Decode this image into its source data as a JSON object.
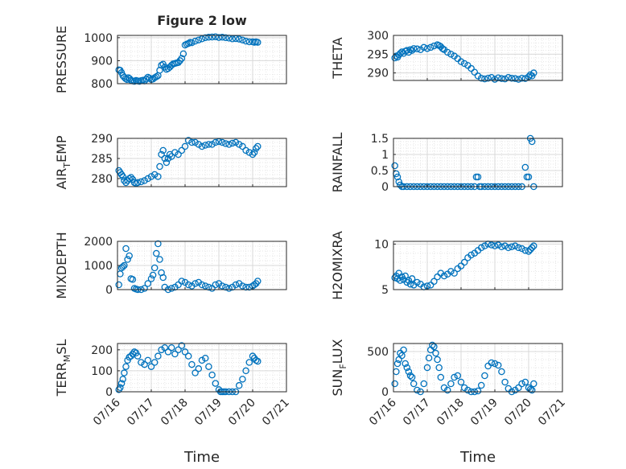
{
  "figure_title": "Figure 2 low",
  "colors": {
    "marker": "#0072BD",
    "grid": "#d9d9d9",
    "axis": "#262626",
    "background": "#ffffff"
  },
  "x_axis": {
    "label": "Time",
    "ticks": [
      "07/16",
      "07/17",
      "07/18",
      "07/19",
      "07/20",
      "07/21"
    ]
  },
  "chart_data": [
    {
      "type": "scatter",
      "id": "pressure",
      "ylabel": "PRESSURE",
      "ylim": [
        800,
        1010
      ],
      "yticks": [
        800,
        900,
        1000
      ],
      "ytick_labels": [
        "800",
        "900",
        "1000"
      ],
      "grid": "on",
      "x": [
        0.04,
        0.08,
        0.12,
        0.16,
        0.2,
        0.24,
        0.28,
        0.32,
        0.36,
        0.4,
        0.45,
        0.5,
        0.55,
        0.6,
        0.65,
        0.7,
        0.75,
        0.8,
        0.85,
        0.9,
        0.95,
        1.0,
        1.05,
        1.1,
        1.15,
        1.2,
        1.25,
        1.3,
        1.35,
        1.4,
        1.45,
        1.5,
        1.55,
        1.6,
        1.65,
        1.7,
        1.75,
        1.8,
        1.85,
        1.9,
        1.95,
        2.0,
        2.05,
        2.1,
        2.15,
        2.2,
        2.3,
        2.4,
        2.5,
        2.6,
        2.7,
        2.8,
        2.9,
        3.0,
        3.1,
        3.2,
        3.3,
        3.4,
        3.5,
        3.6,
        3.7,
        3.8,
        3.9,
        4.0,
        4.05,
        4.1,
        4.15
      ],
      "y": [
        860,
        858,
        848,
        835,
        828,
        822,
        818,
        826,
        822,
        815,
        812,
        810,
        814,
        812,
        810,
        813,
        815,
        812,
        820,
        828,
        824,
        818,
        820,
        826,
        830,
        835,
        858,
        880,
        885,
        872,
        862,
        866,
        872,
        880,
        886,
        888,
        890,
        892,
        900,
        910,
        930,
        968,
        972,
        975,
        980,
        978,
        985,
        990,
        995,
        1000,
        1002,
        1003,
        1004,
        1001,
        1002,
        1000,
        998,
        995,
        996,
        994,
        990,
        985,
        982,
        982,
        980,
        982,
        980
      ]
    },
    {
      "type": "scatter",
      "id": "theta",
      "ylabel": "THETA",
      "ylim": [
        288,
        300
      ],
      "yticks": [
        290,
        295,
        300
      ],
      "ytick_labels": [
        "290",
        "295",
        "300"
      ],
      "grid": "on",
      "x": [
        0.04,
        0.08,
        0.12,
        0.16,
        0.2,
        0.25,
        0.3,
        0.35,
        0.4,
        0.45,
        0.5,
        0.55,
        0.6,
        0.7,
        0.8,
        0.9,
        1.0,
        1.1,
        1.2,
        1.3,
        1.35,
        1.4,
        1.45,
        1.5,
        1.6,
        1.7,
        1.8,
        1.9,
        2.0,
        2.1,
        2.2,
        2.3,
        2.4,
        2.5,
        2.6,
        2.7,
        2.8,
        2.9,
        3.0,
        3.1,
        3.2,
        3.3,
        3.4,
        3.5,
        3.6,
        3.7,
        3.8,
        3.9,
        4.0,
        4.05,
        4.1,
        4.15
      ],
      "y": [
        294,
        294.5,
        294.2,
        294.8,
        295.2,
        295.6,
        295.2,
        295.8,
        296,
        295.5,
        296.2,
        296,
        296.5,
        296.4,
        296.2,
        296.8,
        296.5,
        296.8,
        297.2,
        297.5,
        297.3,
        297,
        296.5,
        296.2,
        295.5,
        295,
        294.5,
        293.8,
        293,
        292.5,
        292,
        291.2,
        290.2,
        289.2,
        288.6,
        288.4,
        288.6,
        288.8,
        288.3,
        288.7,
        288.5,
        288.4,
        288.8,
        288.6,
        288.5,
        288.3,
        288.6,
        288.5,
        289,
        289.5,
        289.2,
        290
      ]
    },
    {
      "type": "scatter",
      "id": "air_temp",
      "ylabel": "AIR_TEMP",
      "ylim": [
        278,
        290
      ],
      "yticks": [
        280,
        285,
        290
      ],
      "ytick_labels": [
        "280",
        "285",
        "290"
      ],
      "grid": "on",
      "x": [
        0.04,
        0.08,
        0.12,
        0.16,
        0.2,
        0.25,
        0.3,
        0.35,
        0.4,
        0.45,
        0.5,
        0.55,
        0.6,
        0.7,
        0.8,
        0.9,
        1.0,
        1.1,
        1.2,
        1.25,
        1.3,
        1.35,
        1.4,
        1.45,
        1.5,
        1.55,
        1.6,
        1.7,
        1.8,
        1.9,
        2.0,
        2.1,
        2.2,
        2.3,
        2.4,
        2.5,
        2.6,
        2.7,
        2.8,
        2.9,
        3.0,
        3.1,
        3.2,
        3.3,
        3.4,
        3.5,
        3.6,
        3.7,
        3.8,
        3.9,
        4.0,
        4.05,
        4.1,
        4.15
      ],
      "y": [
        282,
        281.5,
        281,
        280.5,
        279.5,
        279,
        279.5,
        280,
        280.3,
        279.8,
        279,
        278.8,
        279,
        279.2,
        279.5,
        280,
        280.5,
        281,
        280.5,
        283,
        286,
        287,
        285,
        284,
        285,
        286,
        285.5,
        286.5,
        286,
        287,
        288,
        289.5,
        289,
        289,
        288.5,
        288,
        288.3,
        288.5,
        288.5,
        289,
        289.2,
        289,
        288.7,
        288.5,
        288.8,
        289,
        288.5,
        288,
        287,
        286.5,
        286,
        286.5,
        287.5,
        288
      ]
    },
    {
      "type": "scatter",
      "id": "rainfall",
      "ylabel": "RAINFALL",
      "ylim": [
        0,
        1.5
      ],
      "yticks": [
        0,
        0.5,
        1,
        1.5
      ],
      "ytick_labels": [
        "0",
        "0.5",
        "1",
        "1.5"
      ],
      "grid": "on",
      "x": [
        0.04,
        0.08,
        0.12,
        0.16,
        0.2,
        0.25,
        0.3,
        0.4,
        0.5,
        0.6,
        0.7,
        0.8,
        0.9,
        1.0,
        1.1,
        1.2,
        1.3,
        1.4,
        1.5,
        1.6,
        1.7,
        1.8,
        1.9,
        2.0,
        2.1,
        2.2,
        2.3,
        2.4,
        2.45,
        2.5,
        2.55,
        2.6,
        2.7,
        2.8,
        2.9,
        3.0,
        3.1,
        3.2,
        3.3,
        3.4,
        3.5,
        3.6,
        3.7,
        3.8,
        3.9,
        3.95,
        4.0,
        4.05,
        4.1,
        4.15
      ],
      "y": [
        0.65,
        0.4,
        0.3,
        0.15,
        0.05,
        0,
        0,
        0,
        0,
        0,
        0,
        0,
        0,
        0,
        0,
        0,
        0,
        0,
        0,
        0,
        0,
        0,
        0,
        0,
        0,
        0,
        0,
        0,
        0.3,
        0.3,
        0,
        0,
        0,
        0,
        0,
        0,
        0,
        0,
        0,
        0,
        0,
        0,
        0,
        0,
        0.6,
        0.3,
        0.3,
        1.5,
        1.4,
        0
      ]
    },
    {
      "type": "scatter",
      "id": "mixdepth",
      "ylabel": "MIXDEPTH",
      "ylim": [
        0,
        2000
      ],
      "yticks": [
        0,
        1000,
        2000
      ],
      "ytick_labels": [
        "0",
        "1000",
        "2000"
      ],
      "grid": "on",
      "x": [
        0.04,
        0.08,
        0.12,
        0.16,
        0.2,
        0.25,
        0.3,
        0.35,
        0.4,
        0.45,
        0.5,
        0.55,
        0.6,
        0.7,
        0.8,
        0.9,
        1.0,
        1.05,
        1.1,
        1.15,
        1.2,
        1.25,
        1.3,
        1.35,
        1.4,
        1.5,
        1.6,
        1.7,
        1.8,
        1.9,
        2.0,
        2.1,
        2.2,
        2.3,
        2.4,
        2.5,
        2.6,
        2.7,
        2.8,
        2.9,
        3.0,
        3.1,
        3.2,
        3.3,
        3.4,
        3.5,
        3.6,
        3.7,
        3.8,
        3.9,
        4.0,
        4.05,
        4.1,
        4.15
      ],
      "y": [
        200,
        650,
        900,
        950,
        1000,
        1700,
        1250,
        1400,
        450,
        420,
        50,
        20,
        0,
        0,
        50,
        250,
        450,
        600,
        900,
        1500,
        1900,
        1250,
        700,
        500,
        100,
        0,
        50,
        100,
        200,
        350,
        300,
        200,
        150,
        250,
        300,
        200,
        150,
        100,
        50,
        200,
        250,
        150,
        100,
        50,
        100,
        200,
        250,
        150,
        100,
        100,
        150,
        200,
        250,
        350
      ]
    },
    {
      "type": "scatter",
      "id": "h2omixra",
      "ylabel": "H2OMIXRA",
      "ylim": [
        5,
        10.3
      ],
      "yticks": [
        5,
        10
      ],
      "ytick_labels": [
        "5",
        "10"
      ],
      "grid": "on",
      "x": [
        0.04,
        0.08,
        0.12,
        0.16,
        0.2,
        0.25,
        0.3,
        0.35,
        0.4,
        0.45,
        0.5,
        0.55,
        0.6,
        0.7,
        0.8,
        0.9,
        1.0,
        1.1,
        1.2,
        1.3,
        1.4,
        1.5,
        1.6,
        1.7,
        1.8,
        1.9,
        2.0,
        2.1,
        2.2,
        2.3,
        2.4,
        2.5,
        2.6,
        2.7,
        2.8,
        2.9,
        3.0,
        3.1,
        3.2,
        3.3,
        3.4,
        3.5,
        3.6,
        3.7,
        3.8,
        3.9,
        4.0,
        4.05,
        4.1,
        4.15
      ],
      "y": [
        6.3,
        6.5,
        6.2,
        6.8,
        6,
        6.4,
        6.1,
        6.5,
        5.8,
        6,
        5.6,
        6.2,
        5.5,
        5.8,
        5.6,
        5.3,
        5.4,
        5.5,
        5.9,
        6.4,
        6.8,
        6.5,
        6.7,
        7,
        6.8,
        7.3,
        7.6,
        8,
        8.5,
        8.8,
        9,
        9.3,
        9.6,
        9.8,
        10,
        9.9,
        9.8,
        9.9,
        9.7,
        9.8,
        9.6,
        9.7,
        9.8,
        9.6,
        9.5,
        9.3,
        9.2,
        9.4,
        9.6,
        9.8
      ]
    },
    {
      "type": "scatter",
      "id": "terr_msl",
      "ylabel": "TERR_MSL",
      "ylim": [
        0,
        230
      ],
      "yticks": [
        0,
        100,
        200
      ],
      "ytick_labels": [
        "0",
        "100",
        "200"
      ],
      "grid": "on",
      "x": [
        0.04,
        0.08,
        0.12,
        0.16,
        0.2,
        0.25,
        0.3,
        0.35,
        0.4,
        0.45,
        0.5,
        0.55,
        0.6,
        0.7,
        0.8,
        0.9,
        1.0,
        1.1,
        1.2,
        1.3,
        1.4,
        1.5,
        1.6,
        1.7,
        1.8,
        1.9,
        2.0,
        2.1,
        2.2,
        2.3,
        2.4,
        2.5,
        2.6,
        2.7,
        2.8,
        2.9,
        3.0,
        3.05,
        3.1,
        3.15,
        3.2,
        3.3,
        3.4,
        3.5,
        3.6,
        3.7,
        3.8,
        3.9,
        4.0,
        4.05,
        4.1,
        4.15
      ],
      "y": [
        10,
        20,
        40,
        60,
        90,
        120,
        150,
        165,
        170,
        180,
        190,
        185,
        170,
        140,
        130,
        150,
        120,
        140,
        170,
        200,
        210,
        190,
        210,
        180,
        200,
        220,
        190,
        170,
        130,
        90,
        110,
        150,
        160,
        120,
        80,
        40,
        10,
        0,
        0,
        0,
        0,
        0,
        0,
        0,
        30,
        60,
        100,
        140,
        170,
        160,
        150,
        145
      ]
    },
    {
      "type": "scatter",
      "id": "sun_flux",
      "ylabel": "SUN_FLUX",
      "ylim": [
        0,
        600
      ],
      "yticks": [
        0,
        500
      ],
      "ytick_labels": [
        "0",
        "500"
      ],
      "grid": "on",
      "x": [
        0.04,
        0.08,
        0.12,
        0.16,
        0.2,
        0.25,
        0.3,
        0.35,
        0.4,
        0.45,
        0.5,
        0.55,
        0.6,
        0.7,
        0.8,
        0.9,
        1.0,
        1.05,
        1.1,
        1.15,
        1.2,
        1.25,
        1.3,
        1.35,
        1.4,
        1.5,
        1.6,
        1.7,
        1.8,
        1.9,
        2.0,
        2.1,
        2.2,
        2.3,
        2.4,
        2.5,
        2.6,
        2.7,
        2.8,
        2.9,
        3.0,
        3.1,
        3.2,
        3.3,
        3.4,
        3.5,
        3.6,
        3.7,
        3.8,
        3.9,
        4.0,
        4.05,
        4.1,
        4.15
      ],
      "y": [
        100,
        250,
        350,
        400,
        480,
        450,
        520,
        350,
        300,
        250,
        200,
        180,
        100,
        20,
        0,
        100,
        300,
        420,
        520,
        580,
        560,
        480,
        400,
        300,
        180,
        50,
        20,
        100,
        180,
        200,
        120,
        50,
        20,
        0,
        0,
        10,
        80,
        200,
        320,
        360,
        350,
        330,
        250,
        120,
        40,
        0,
        20,
        50,
        100,
        120,
        50,
        30,
        20,
        100
      ]
    }
  ]
}
